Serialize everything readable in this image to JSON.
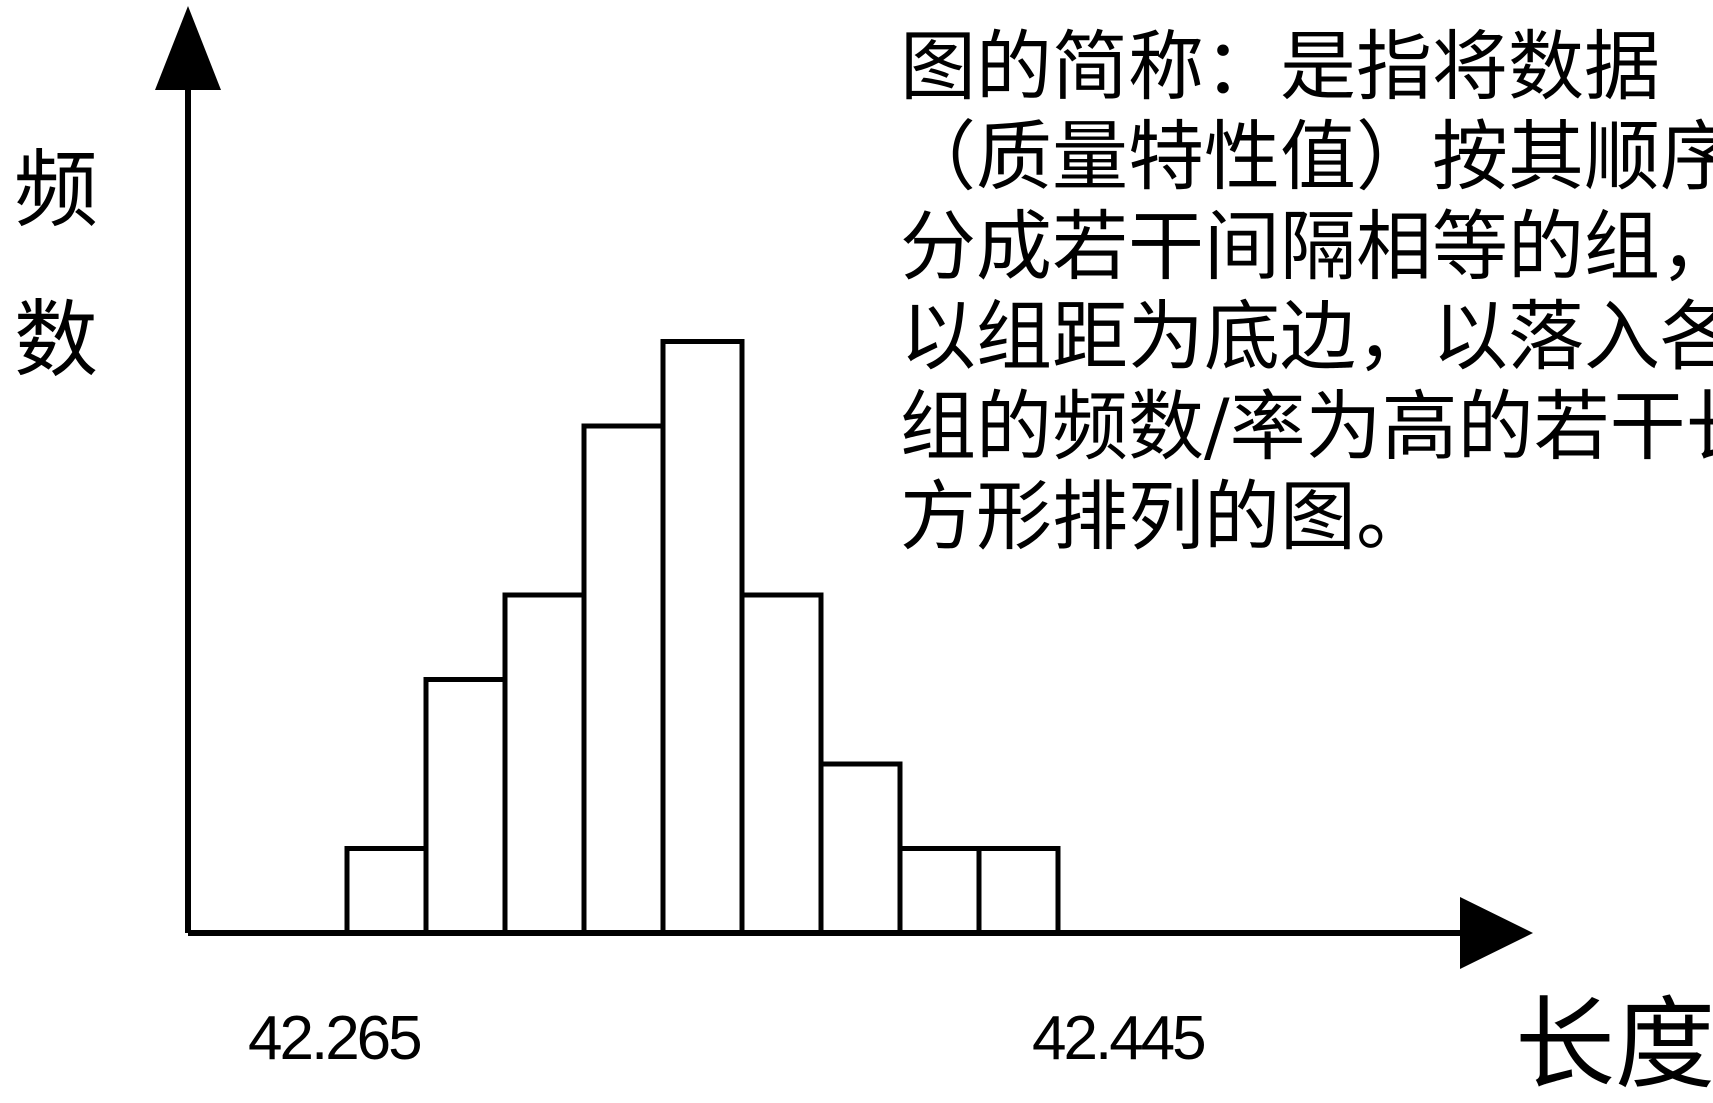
{
  "chart_data": {
    "type": "bar",
    "ylabel_chars": [
      "频",
      "数"
    ],
    "xlabel": "长度",
    "x_tick_labels": [
      "42.265",
      "42.445"
    ],
    "values": [
      1,
      3,
      4,
      6,
      7,
      4,
      2,
      1,
      1
    ],
    "annotation_lines": [
      "图的简称：是指将数据",
      "（质量特性值）按其顺序",
      "分成若干间隔相等的组，",
      "以组距为底边，以落入各",
      "组的频数/率为高的若干长",
      "方形排列的图。"
    ]
  }
}
